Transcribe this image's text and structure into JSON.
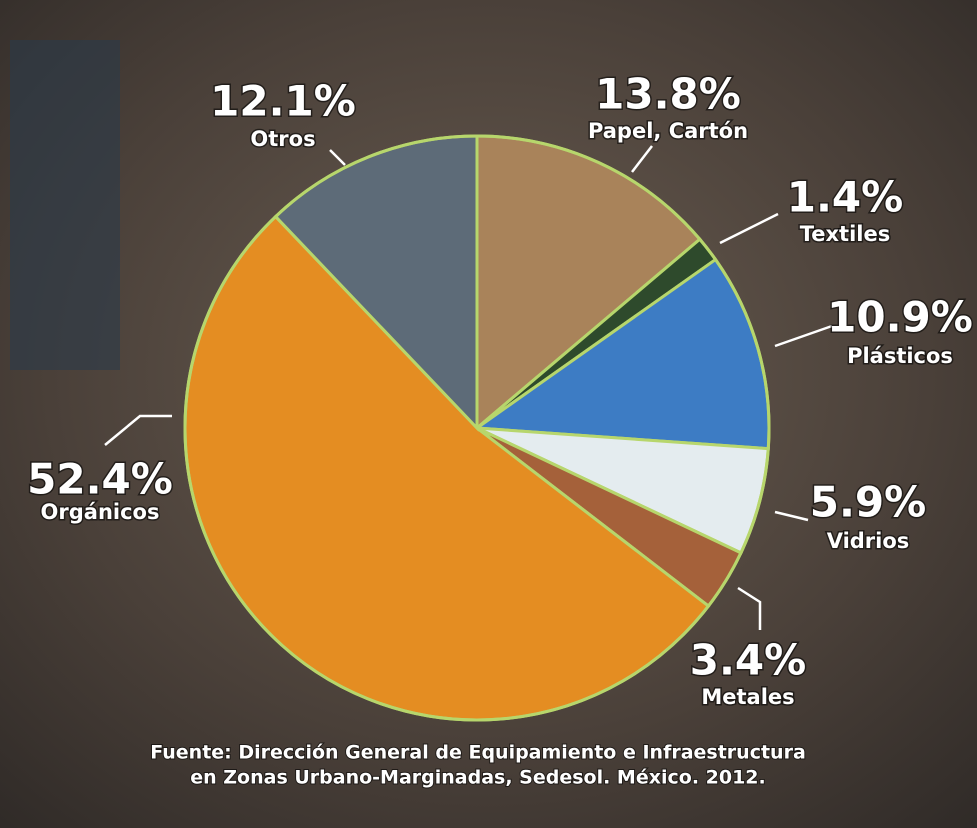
{
  "chart_data": {
    "type": "pie",
    "categories": [
      "Papel, Cartón",
      "Textiles",
      "Plásticos",
      "Vidrios",
      "Metales",
      "Orgánicos",
      "Otros"
    ],
    "values": [
      13.8,
      1.4,
      10.9,
      5.9,
      3.4,
      52.4,
      12.1
    ],
    "value_labels": [
      "13.8%",
      "1.4%",
      "10.9%",
      "5.9%",
      "3.4%",
      "52.4%",
      "12.1%"
    ],
    "colors": [
      "#a9835a",
      "#2e4a2c",
      "#3d7cc4",
      "#e4ecef",
      "#a5613a",
      "#e48d22",
      "#5d6b78"
    ],
    "source": [
      "Fuente: Dirección General de Equipamiento e Infraestructura",
      "en Zonas Urbano-Marginadas, Sedesol. México. 2012."
    ]
  }
}
